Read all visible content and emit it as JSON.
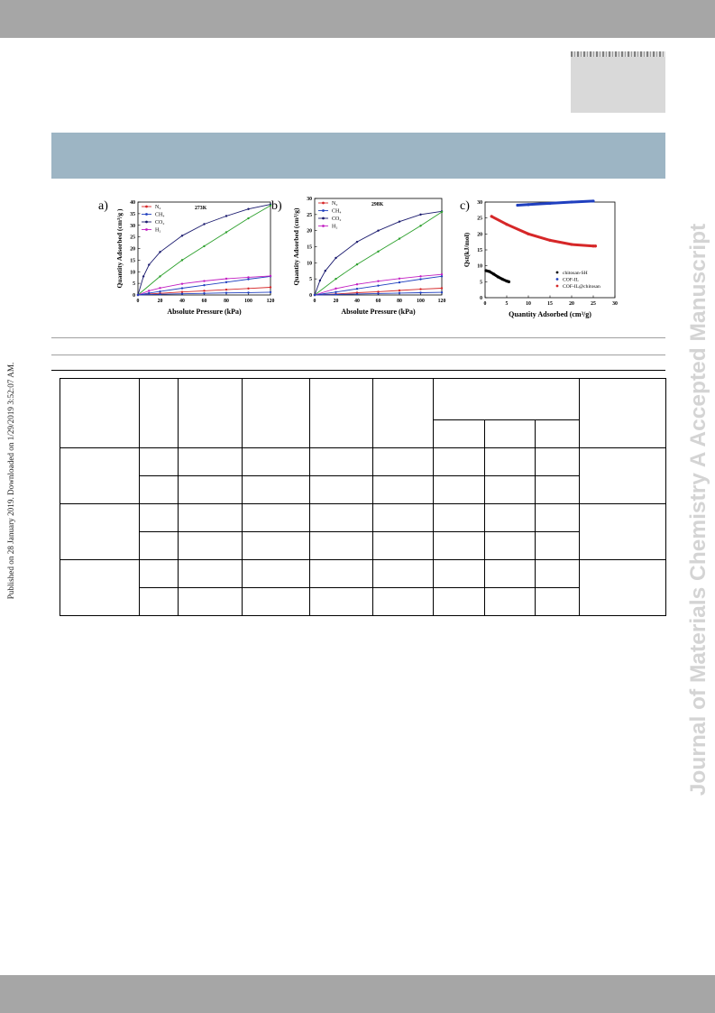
{
  "page": {
    "side_watermark": "Journal of Materials Chemistry A Accepted Manuscript",
    "published_note": "Published on 28 January 2019. Downloaded on 1/29/2019 3:52:07 AM."
  },
  "figure": {
    "panels": [
      "a)",
      "b)",
      "c)"
    ]
  },
  "chart_data": [
    {
      "panel": "a)",
      "type": "line",
      "annotation": "273K",
      "xlabel": "Absolute Pressure (kPa)",
      "ylabel": "Quantity Adsorbed (cm³/g )",
      "xlim": [
        0,
        120
      ],
      "ylim": [
        0,
        40
      ],
      "xticks": [
        0,
        20,
        40,
        60,
        80,
        100,
        120
      ],
      "yticks": [
        0,
        5,
        10,
        15,
        20,
        25,
        30,
        35,
        40
      ],
      "legend_position": "top-left",
      "series": [
        {
          "name": "N₂",
          "color": "#d62728",
          "x": [
            0,
            10,
            20,
            40,
            60,
            80,
            100,
            120
          ],
          "y": [
            0,
            0.4,
            0.7,
            1.3,
            1.8,
            2.3,
            2.8,
            3.3
          ]
        },
        {
          "name": "CH₄",
          "color": "#1f3fbf",
          "x": [
            0,
            10,
            20,
            40,
            60,
            80,
            100,
            120
          ],
          "y": [
            0,
            0.8,
            1.5,
            2.9,
            4.2,
            5.5,
            6.8,
            8.0
          ]
        },
        {
          "name": "CO₂",
          "color": "#1a1a6e",
          "x": [
            0,
            5,
            10,
            20,
            40,
            60,
            80,
            100,
            120
          ],
          "y": [
            0,
            8,
            13,
            18.5,
            25.5,
            30.5,
            34,
            37,
            39
          ]
        },
        {
          "name": "CO₂",
          "color": "#2ca02c",
          "x": [
            0,
            20,
            40,
            60,
            80,
            100,
            120
          ],
          "y": [
            0,
            8,
            15,
            21,
            27,
            33,
            38.5
          ]
        },
        {
          "name": "H₂",
          "color": "#c21fc2",
          "x": [
            0,
            10,
            20,
            40,
            60,
            80,
            100,
            120
          ],
          "y": [
            0,
            1.8,
            3,
            4.8,
            6,
            7,
            7.6,
            8.2
          ]
        },
        {
          "name": "",
          "color": "#1f3fbf",
          "x": [
            0,
            20,
            40,
            60,
            80,
            100,
            120
          ],
          "y": [
            0,
            0.3,
            0.5,
            0.7,
            0.9,
            1.0,
            1.2
          ]
        }
      ]
    },
    {
      "panel": "b)",
      "type": "line",
      "annotation": "298K",
      "xlabel": "Absolute Pressure (kPa)",
      "ylabel": "Quantity Adsorbed (cm³/g)",
      "xlim": [
        0,
        120
      ],
      "ylim": [
        0,
        30
      ],
      "xticks": [
        0,
        20,
        40,
        60,
        80,
        100,
        120
      ],
      "yticks": [
        0,
        5,
        10,
        15,
        20,
        25,
        30
      ],
      "legend_position": "top-left",
      "series": [
        {
          "name": "N₂",
          "color": "#d62728",
          "x": [
            0,
            20,
            40,
            60,
            80,
            100,
            120
          ],
          "y": [
            0,
            0.3,
            0.7,
            1.0,
            1.4,
            1.8,
            2.1
          ]
        },
        {
          "name": "CH₄",
          "color": "#1f3fbf",
          "x": [
            0,
            20,
            40,
            60,
            80,
            100,
            120
          ],
          "y": [
            0,
            0.9,
            1.9,
            2.9,
            3.9,
            4.9,
            5.8
          ]
        },
        {
          "name": "CO₂",
          "color": "#1a1a6e",
          "x": [
            0,
            5,
            10,
            20,
            40,
            60,
            80,
            100,
            120
          ],
          "y": [
            0,
            4.5,
            7.5,
            11.5,
            16.5,
            20,
            22.8,
            25,
            26
          ]
        },
        {
          "name": "CO₂",
          "color": "#2ca02c",
          "x": [
            0,
            20,
            40,
            60,
            80,
            100,
            120
          ],
          "y": [
            0,
            5,
            9.5,
            13.5,
            17.5,
            21.5,
            25.8
          ]
        },
        {
          "name": "H₂",
          "color": "#c21fc2",
          "x": [
            0,
            20,
            40,
            60,
            80,
            100,
            120
          ],
          "y": [
            0,
            2,
            3.3,
            4.3,
            5.1,
            5.8,
            6.4
          ]
        },
        {
          "name": "",
          "color": "#1f3fbf",
          "x": [
            0,
            20,
            40,
            60,
            80,
            100,
            120
          ],
          "y": [
            0,
            0.15,
            0.3,
            0.45,
            0.6,
            0.7,
            0.8
          ]
        }
      ]
    },
    {
      "panel": "c)",
      "type": "scatter",
      "xlabel": "Quantity Adsorbed (cm³/g)",
      "ylabel": "Qst(kJ/mol)",
      "xlim": [
        0,
        30
      ],
      "ylim": [
        0,
        30
      ],
      "xticks": [
        0,
        5,
        10,
        15,
        20,
        25,
        30
      ],
      "yticks": [
        0,
        5,
        10,
        15,
        20,
        25,
        30
      ],
      "legend_position": "bottom-right",
      "series": [
        {
          "name": "chitosan-SH",
          "color": "#000000",
          "x": [
            0.2,
            1,
            2,
            3,
            4,
            5,
            5.5
          ],
          "y": [
            8.5,
            8.2,
            7.4,
            6.5,
            5.8,
            5.2,
            5
          ]
        },
        {
          "name": "COF-IL",
          "color": "#1f3fbf",
          "x": [
            7.5,
            10,
            15,
            20,
            25
          ],
          "y": [
            29,
            29.2,
            29.6,
            30,
            30.3
          ]
        },
        {
          "name": "COF-IL@chitosan",
          "color": "#d62728",
          "x": [
            1.5,
            5,
            10,
            15,
            20,
            25,
            25.5
          ],
          "y": [
            25.5,
            23,
            20,
            18,
            16.7,
            16.2,
            16.2
          ]
        }
      ]
    }
  ],
  "table": {
    "rows": [
      [
        "",
        "",
        "",
        "",
        "",
        "",
        "",
        "",
        "",
        ""
      ],
      [
        "",
        "",
        "",
        ""
      ],
      [
        "",
        "",
        "",
        "",
        "",
        "",
        "",
        "",
        "",
        ""
      ],
      [
        "",
        "",
        "",
        "",
        "",
        "",
        "",
        ""
      ],
      [
        "",
        "",
        "",
        "",
        "",
        "",
        "",
        "",
        "",
        ""
      ],
      [
        "",
        "",
        "",
        "",
        "",
        "",
        "",
        ""
      ],
      [
        "",
        "",
        "",
        "",
        "",
        "",
        "",
        "",
        "",
        ""
      ],
      [
        "",
        "",
        "",
        "",
        "",
        "",
        "",
        ""
      ]
    ]
  }
}
